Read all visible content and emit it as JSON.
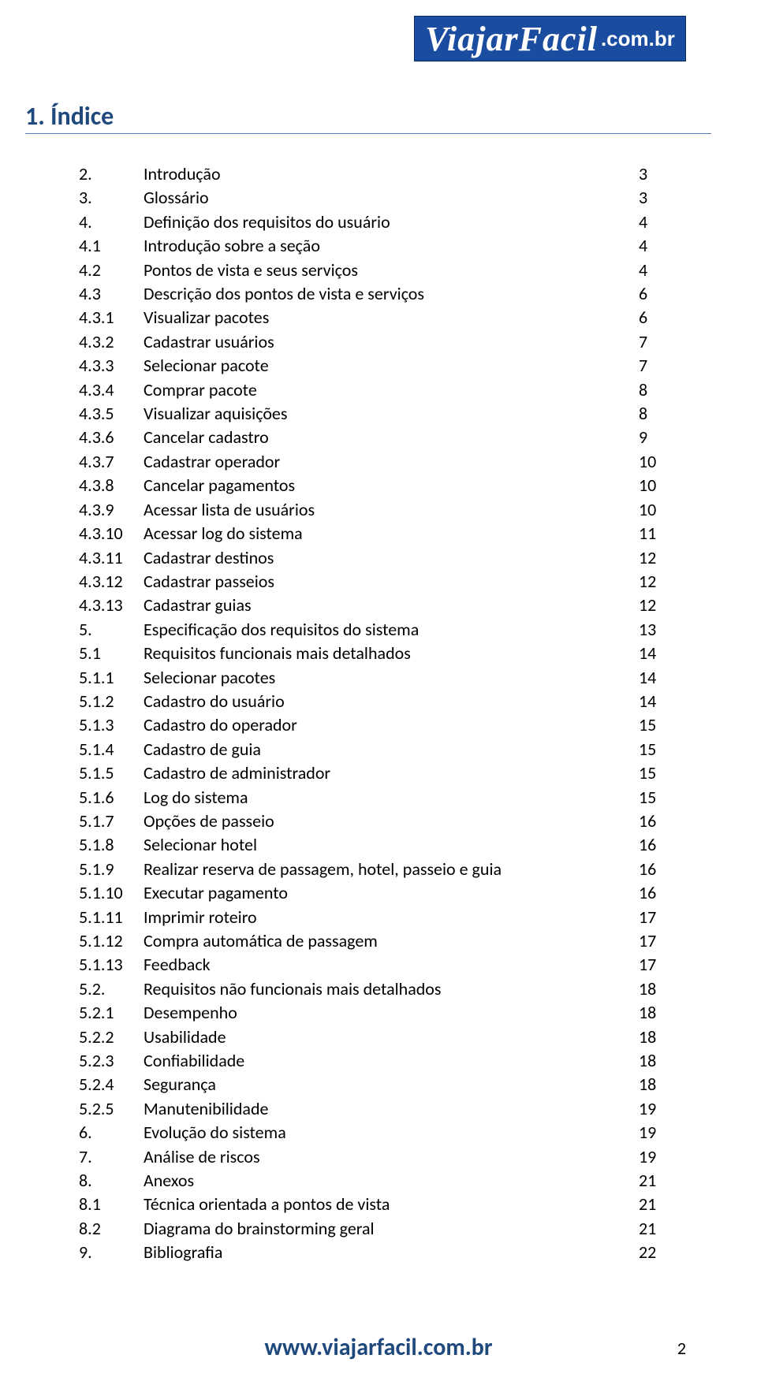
{
  "logo": {
    "brand": "ViajarFacil",
    "domain": ".com.br"
  },
  "heading": "1. Índice",
  "toc": [
    {
      "num": "2.",
      "title": "Introdução",
      "page": "3"
    },
    {
      "num": "3.",
      "title": "Glossário",
      "page": "3"
    },
    {
      "num": "4.",
      "title": "Definição dos requisitos do usuário",
      "page": "4"
    },
    {
      "num": "4.1",
      "title": "Introdução sobre a seção",
      "page": "4"
    },
    {
      "num": "4.2",
      "title": "Pontos de vista e seus serviços",
      "page": "4"
    },
    {
      "num": "4.3",
      "title": "Descrição dos pontos de vista e serviços",
      "page": "6"
    },
    {
      "num": "4.3.1",
      "title": "Visualizar pacotes",
      "page": "6"
    },
    {
      "num": "4.3.2",
      "title": "Cadastrar usuários",
      "page": "7"
    },
    {
      "num": "4.3.3",
      "title": "Selecionar pacote",
      "page": "7"
    },
    {
      "num": "4.3.4",
      "title": "Comprar pacote",
      "page": "8"
    },
    {
      "num": "4.3.5",
      "title": "Visualizar aquisições",
      "page": "8"
    },
    {
      "num": "4.3.6",
      "title": "Cancelar cadastro",
      "page": "9"
    },
    {
      "num": "4.3.7",
      "title": "Cadastrar operador",
      "page": "10"
    },
    {
      "num": "4.3.8",
      "title": "Cancelar pagamentos",
      "page": "10"
    },
    {
      "num": "4.3.9",
      "title": "Acessar lista de usuários",
      "page": "10"
    },
    {
      "num": "4.3.10",
      "title": "Acessar log do sistema",
      "page": "11"
    },
    {
      "num": "4.3.11",
      "title": "Cadastrar destinos",
      "page": "12"
    },
    {
      "num": "4.3.12",
      "title": "Cadastrar passeios",
      "page": "12"
    },
    {
      "num": "4.3.13",
      "title": "Cadastrar guias",
      "page": "12"
    },
    {
      "num": "5.",
      "title": "Especificação dos requisitos do sistema",
      "page": "13"
    },
    {
      "num": "5.1",
      "title": "Requisitos funcionais mais detalhados",
      "page": "14"
    },
    {
      "num": "5.1.1",
      "title": "Selecionar pacotes",
      "page": "14"
    },
    {
      "num": "5.1.2",
      "title": "Cadastro do usuário",
      "page": "14"
    },
    {
      "num": "5.1.3",
      "title": "Cadastro do operador",
      "page": "15"
    },
    {
      "num": "5.1.4",
      "title": "Cadastro de guia",
      "page": "15"
    },
    {
      "num": "5.1.5",
      "title": "Cadastro de administrador",
      "page": "15"
    },
    {
      "num": "5.1.6",
      "title": "Log do sistema",
      "page": "15"
    },
    {
      "num": "5.1.7",
      "title": "Opções de passeio",
      "page": "16"
    },
    {
      "num": "5.1.8",
      "title": "Selecionar hotel",
      "page": "16"
    },
    {
      "num": "5.1.9",
      "title": "Realizar reserva de passagem, hotel, passeio e guia",
      "page": "16"
    },
    {
      "num": "5.1.10",
      "title": "Executar pagamento",
      "page": "16"
    },
    {
      "num": "5.1.11",
      "title": "Imprimir roteiro",
      "page": "17"
    },
    {
      "num": "5.1.12",
      "title": "Compra automática de passagem",
      "page": "17"
    },
    {
      "num": "5.1.13",
      "title": "Feedback",
      "page": "17"
    },
    {
      "num": "5.2.",
      "title": "Requisitos não funcionais mais detalhados",
      "page": "18"
    },
    {
      "num": "5.2.1",
      "title": "Desempenho",
      "page": "18"
    },
    {
      "num": "5.2.2",
      "title": "Usabilidade",
      "page": "18"
    },
    {
      "num": "5.2.3",
      "title": "Confiabilidade",
      "page": "18"
    },
    {
      "num": "5.2.4",
      "title": "Segurança",
      "page": "18"
    },
    {
      "num": "5.2.5",
      "title": "Manutenibilidade",
      "page": "19"
    },
    {
      "num": "6.",
      "title": "Evolução do sistema",
      "page": "19"
    },
    {
      "num": "7.",
      "title": "Análise de riscos",
      "page": "19"
    },
    {
      "num": "8.",
      "title": "Anexos",
      "page": "21"
    },
    {
      "num": "8.1",
      "title": "Técnica orientada a pontos de vista",
      "page": "21"
    },
    {
      "num": "8.2",
      "title": "Diagrama do brainstorming geral",
      "page": "21"
    },
    {
      "num": "9.",
      "title": "Bibliografia",
      "page": "22"
    }
  ],
  "footer": {
    "url": "www.viajarfacil.com.br",
    "page_number": "2"
  },
  "colors": {
    "heading": "#1f497d",
    "heading_rule": "#4f81bd",
    "logo_bg": "#1a4ca0",
    "text": "#000000",
    "background": "#ffffff"
  },
  "typography": {
    "body_fontsize": 22,
    "heading_fontsize": 32,
    "footer_fontsize": 30,
    "line_height": 30.4
  }
}
